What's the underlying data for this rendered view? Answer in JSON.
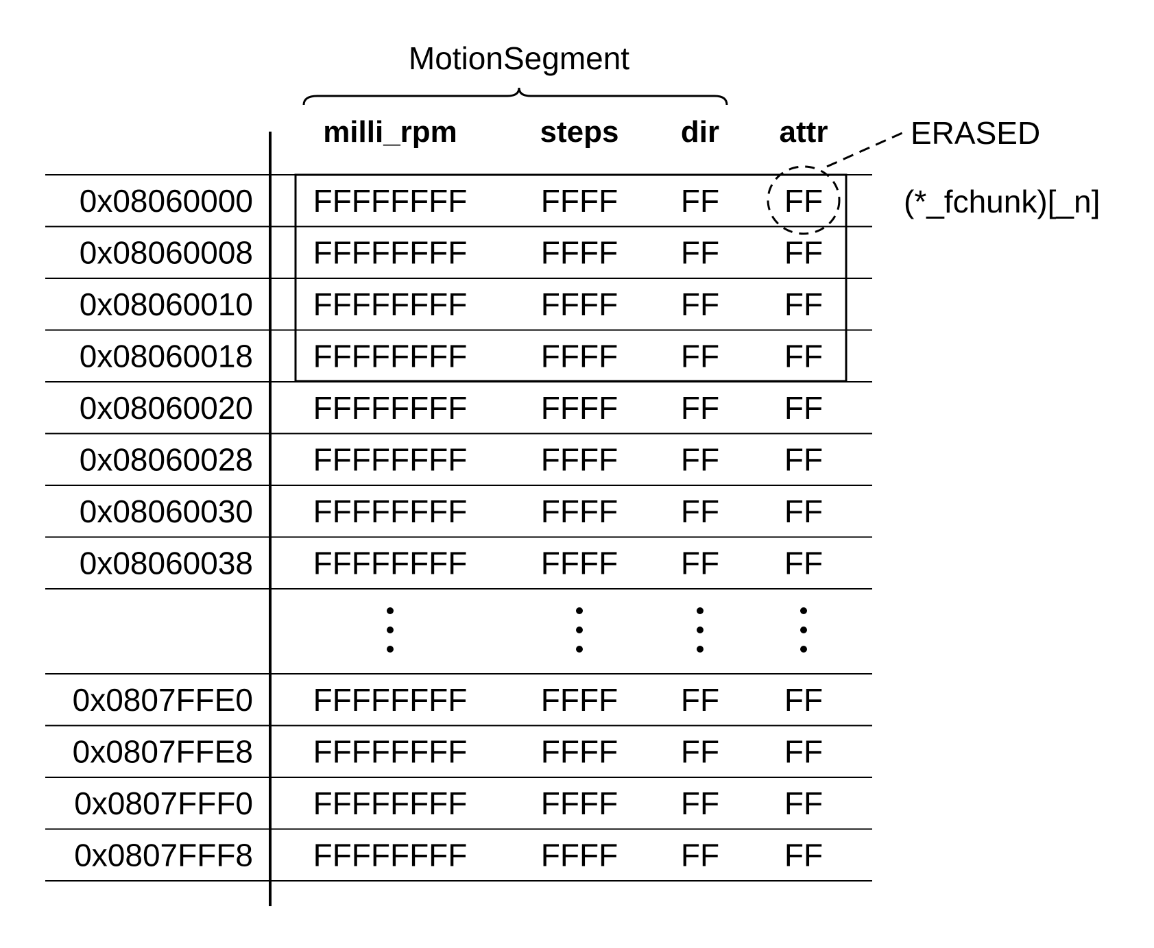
{
  "struct_label": "MotionSegment",
  "columns": [
    "milli_rpm",
    "steps",
    "dir",
    "attr"
  ],
  "rows": [
    {
      "address": "0x08060000",
      "values": [
        "FFFFFFFF",
        "FFFF",
        "FF",
        "FF"
      ]
    },
    {
      "address": "0x08060008",
      "values": [
        "FFFFFFFF",
        "FFFF",
        "FF",
        "FF"
      ]
    },
    {
      "address": "0x08060010",
      "values": [
        "FFFFFFFF",
        "FFFF",
        "FF",
        "FF"
      ]
    },
    {
      "address": "0x08060018",
      "values": [
        "FFFFFFFF",
        "FFFF",
        "FF",
        "FF"
      ]
    },
    {
      "address": "0x08060020",
      "values": [
        "FFFFFFFF",
        "FFFF",
        "FF",
        "FF"
      ]
    },
    {
      "address": "0x08060028",
      "values": [
        "FFFFFFFF",
        "FFFF",
        "FF",
        "FF"
      ]
    },
    {
      "address": "0x08060030",
      "values": [
        "FFFFFFFF",
        "FFFF",
        "FF",
        "FF"
      ]
    },
    {
      "address": "0x08060038",
      "values": [
        "FFFFFFFF",
        "FFFF",
        "FF",
        "FF"
      ]
    },
    {
      "ellipsis": true
    },
    {
      "address": "0x0807FFE0",
      "values": [
        "FFFFFFFF",
        "FFFF",
        "FF",
        "FF"
      ]
    },
    {
      "address": "0x0807FFE8",
      "values": [
        "FFFFFFFF",
        "FFFF",
        "FF",
        "FF"
      ]
    },
    {
      "address": "0x0807FFF0",
      "values": [
        "FFFFFFFF",
        "FFFF",
        "FF",
        "FF"
      ]
    },
    {
      "address": "0x0807FFF8",
      "values": [
        "FFFFFFFF",
        "FFFF",
        "FF",
        "FF"
      ]
    }
  ],
  "highlight_block_rows": 4,
  "chunk_label": "(*_fchunk)[_n]",
  "callout_label": "ERASED"
}
